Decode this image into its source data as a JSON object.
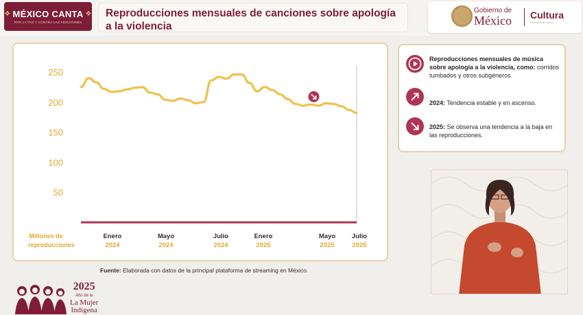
{
  "header": {
    "logo_title": "MÉXICO CANTA",
    "logo_subtitle": "POR LA PAZ Y CONTRA LAS ADICCIONES",
    "title": "Reproducciones mensuales de canciones sobre apología a la violencia",
    "gov_small": "Gobierno de",
    "gov_big": "México",
    "gov_dept": "Cultura",
    "gov_dept_sub": "Secretaría de Cultura"
  },
  "chart_data": {
    "type": "line",
    "title": "",
    "ylabel": "Millones de reproducciones",
    "ylim": [
      0,
      260
    ],
    "yticks": [
      50,
      100,
      150,
      200,
      250
    ],
    "x_ticks": [
      {
        "month": "Enero",
        "year": "2024",
        "index": 0
      },
      {
        "month": "Mayo",
        "year": "2024",
        "index": 4
      },
      {
        "month": "Julio",
        "year": "2024",
        "index": 6
      },
      {
        "month": "Enero",
        "year": "2025",
        "index": 12
      },
      {
        "month": "Mayo",
        "year": "2025",
        "index": 16
      },
      {
        "month": "Julio",
        "year": "2025",
        "index": 18
      }
    ],
    "series": [
      {
        "color": "#f0c04a",
        "x": [
          0,
          0.5,
          1,
          1.5,
          2,
          2.5,
          3,
          3.5,
          4,
          4.5,
          5,
          5.5,
          6,
          6.5,
          7,
          7.5,
          8,
          8.5,
          9,
          9.5,
          10,
          10.5,
          11,
          11.5,
          12,
          12.5,
          13,
          13.5,
          14,
          14.5,
          15,
          15.5,
          16,
          16.5,
          17,
          17.5,
          18
        ],
        "values": [
          225,
          240,
          233,
          222,
          217,
          218,
          221,
          224,
          225,
          216,
          213,
          204,
          202,
          206,
          203,
          198,
          200,
          236,
          242,
          239,
          246,
          246,
          232,
          218,
          225,
          220,
          213,
          205,
          197,
          194,
          196,
          194,
          198,
          197,
          193,
          187,
          182
        ]
      }
    ],
    "marker": {
      "x": 15.2,
      "value": 209,
      "icon": "arrow-down-right"
    },
    "grid": false,
    "line_color": "#f0c04a",
    "axis_color": "#b03456",
    "label_color": "#e0a830"
  },
  "info": {
    "item1": {
      "bold": "Reproducciones mensuales de música sobre apología a la violencia, como:",
      "text": " corridos tumbados y otros subgéneros.",
      "icon": "play-icon"
    },
    "item2": {
      "bold": "2024:",
      "text": " Tendencia estable y en ascenso.",
      "icon": "arrow-up-right-icon"
    },
    "item3": {
      "bold": "2025:",
      "text": " Se observa una tendencia a la baja en las reproducciones.",
      "icon": "arrow-down-right-icon"
    }
  },
  "source": {
    "label": "Fuente:",
    "text": " Elaborada con datos de la principal plataforma de streaming en México."
  },
  "footer": {
    "year": "2025",
    "line1": "Año de la",
    "line2": "La Mujer",
    "line3": "Indígena"
  },
  "colors": {
    "brand": "#7d1d36",
    "accent": "#b03456",
    "line": "#f0c04a",
    "panel_border": "#e6d2a8"
  }
}
